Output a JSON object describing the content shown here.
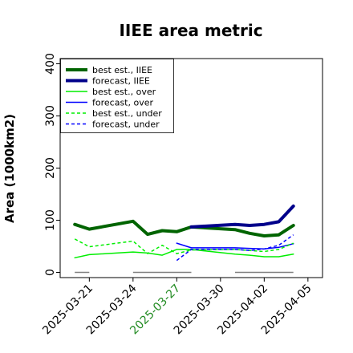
{
  "chart_data": {
    "type": "line",
    "title": "IIEE area metric",
    "xlabel": "",
    "ylabel": "Area (1000km2)",
    "ylim": [
      -10,
      410
    ],
    "xlim": [
      "2025-03-19",
      "2025-04-06"
    ],
    "grid": false,
    "legend_position": "top-left",
    "y_ticks": [
      0,
      100,
      200,
      300,
      400
    ],
    "x_ticks": [
      {
        "date": "2025-03-21",
        "label": "2025-03-21",
        "color": "#000000"
      },
      {
        "date": "2025-03-24",
        "label": "2025-03-24",
        "color": "#000000"
      },
      {
        "date": "2025-03-27",
        "label": "2025-03-27",
        "color": "#228B22"
      },
      {
        "date": "2025-03-30",
        "label": "2025-03-30",
        "color": "#000000"
      },
      {
        "date": "2025-04-02",
        "label": "2025-04-02",
        "color": "#000000"
      },
      {
        "date": "2025-04-05",
        "label": "2025-04-05",
        "color": "#000000"
      }
    ],
    "series": [
      {
        "name": "best est., IIEE",
        "color": "#006400",
        "width": 4,
        "dash": "solid",
        "x": [
          "2025-03-20",
          "2025-03-21",
          "2025-03-24",
          "2025-03-25",
          "2025-03-26",
          "2025-03-27",
          "2025-03-28",
          "2025-03-31",
          "2025-04-01",
          "2025-04-02",
          "2025-04-03",
          "2025-04-04"
        ],
        "y": [
          92,
          83,
          98,
          73,
          80,
          78,
          87,
          82,
          75,
          70,
          72,
          90
        ]
      },
      {
        "name": "forecast, IIEE",
        "color": "#00008B",
        "width": 4,
        "dash": "solid",
        "x": [
          "2025-03-28",
          "2025-03-31",
          "2025-04-01",
          "2025-04-02",
          "2025-04-03",
          "2025-04-04"
        ],
        "y": [
          87,
          92,
          90,
          92,
          97,
          127
        ]
      },
      {
        "name": "best est., over",
        "color": "#00EE00",
        "width": 1.5,
        "dash": "solid",
        "x": [
          "2025-03-20",
          "2025-03-21",
          "2025-03-24",
          "2025-03-25",
          "2025-03-26",
          "2025-03-27",
          "2025-03-28",
          "2025-03-31",
          "2025-04-01",
          "2025-04-02",
          "2025-04-03",
          "2025-04-04"
        ],
        "y": [
          28,
          34,
          39,
          37,
          33,
          44,
          44,
          35,
          33,
          30,
          30,
          35
        ]
      },
      {
        "name": "forecast, over",
        "color": "#0000FF",
        "width": 1.5,
        "dash": "solid",
        "x": [
          "2025-03-27",
          "2025-03-28",
          "2025-03-31",
          "2025-04-01",
          "2025-04-02",
          "2025-04-03",
          "2025-04-04"
        ],
        "y": [
          56,
          47,
          47,
          46,
          45,
          48,
          55
        ]
      },
      {
        "name": "best est., under",
        "color": "#00EE00",
        "width": 1.5,
        "dash": "dashed",
        "x": [
          "2025-03-20",
          "2025-03-21",
          "2025-03-24",
          "2025-03-25",
          "2025-03-26",
          "2025-03-27",
          "2025-03-28",
          "2025-03-31",
          "2025-04-01",
          "2025-04-02",
          "2025-04-03",
          "2025-04-04"
        ],
        "y": [
          64,
          49,
          60,
          36,
          52,
          36,
          43,
          44,
          42,
          40,
          44,
          56
        ]
      },
      {
        "name": "forecast, under",
        "color": "#0000FF",
        "width": 1.5,
        "dash": "dashed",
        "x": [
          "2025-03-27",
          "2025-03-28",
          "2025-03-31",
          "2025-04-01",
          "2025-04-02",
          "2025-04-03",
          "2025-04-04"
        ],
        "y": [
          23,
          44,
          44,
          42,
          45,
          52,
          72
        ]
      }
    ],
    "gray_baselines": [
      {
        "x": [
          "2025-03-20",
          "2025-03-21"
        ],
        "y": [
          0,
          0
        ],
        "color": "#808080"
      },
      {
        "x": [
          "2025-03-24",
          "2025-03-28"
        ],
        "y": [
          0,
          0
        ],
        "color": "#808080"
      },
      {
        "x": [
          "2025-03-31",
          "2025-04-04"
        ],
        "y": [
          0,
          0
        ],
        "color": "#808080"
      }
    ]
  }
}
